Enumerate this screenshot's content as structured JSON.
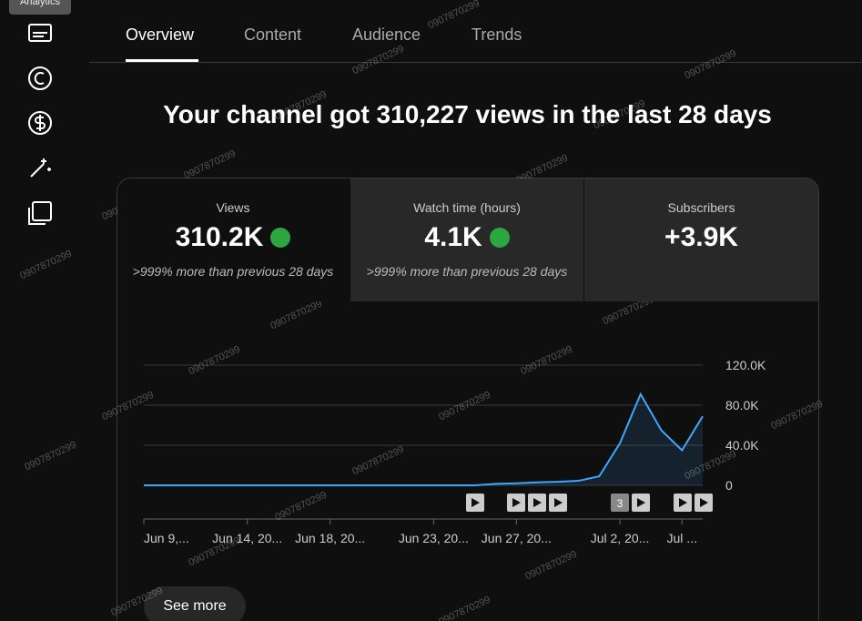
{
  "tooltip": "Analytics",
  "tabs": [
    "Overview",
    "Content",
    "Audience",
    "Trends"
  ],
  "headline": "Your channel got 310,227 views in the last 28 days",
  "cards": [
    {
      "label": "Views",
      "value": "310.2K",
      "note": ">999% more than previous 28 days"
    },
    {
      "label": "Watch time (hours)",
      "value": "4.1K",
      "note": ">999% more than previous 28 days"
    },
    {
      "label": "Subscribers",
      "value": "+3.9K"
    }
  ],
  "chart_data": {
    "type": "line",
    "color": "#3ea6ff",
    "categories": [
      "Jun 9,...",
      null,
      null,
      null,
      null,
      "Jun 14, 20...",
      null,
      null,
      null,
      "Jun 18, 20...",
      null,
      null,
      null,
      null,
      "Jun 23, 20...",
      null,
      null,
      null,
      "Jun 27, 20...",
      null,
      null,
      null,
      null,
      "Jul 2, 20...",
      null,
      null,
      "Jul ...",
      null
    ],
    "values": [
      0,
      0,
      0,
      0,
      0,
      0,
      0,
      0,
      0,
      0,
      0,
      0,
      0,
      0,
      0,
      0,
      0,
      1500,
      2000,
      3000,
      3500,
      4500,
      9000,
      42000,
      91000,
      55000,
      35000,
      69000
    ],
    "ylim": [
      0,
      120000
    ],
    "yticks": [
      0,
      {
        "value": 40000,
        "label": "40.0K"
      },
      {
        "value": 80000,
        "label": "80.0K"
      },
      {
        "value": 120000,
        "label": "120.0K"
      }
    ],
    "grid": true,
    "badge": "3"
  },
  "button": "See more",
  "watermark": "0907870299"
}
